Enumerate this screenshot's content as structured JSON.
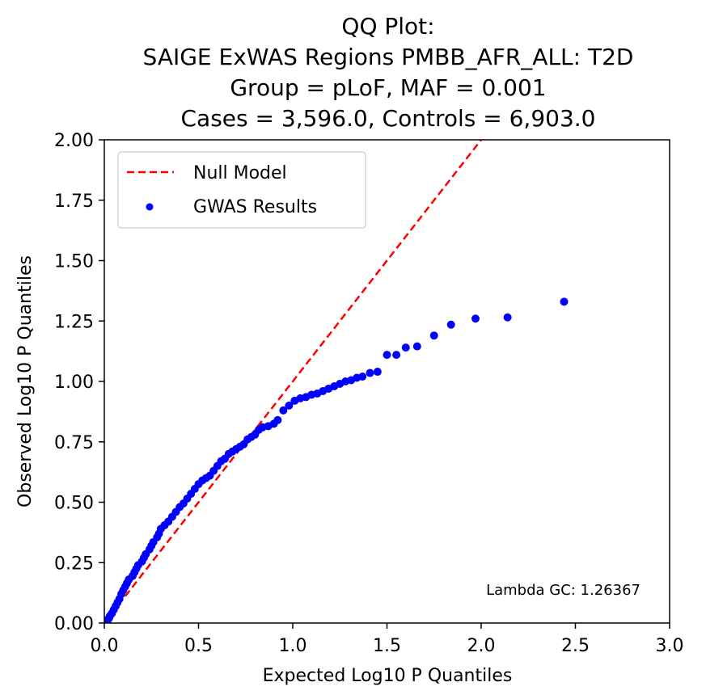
{
  "chart_data": {
    "type": "scatter",
    "title_lines": [
      "QQ Plot:",
      "SAIGE ExWAS Regions PMBB_AFR_ALL: T2D",
      "Group = pLoF, MAF = 0.001",
      "Cases = 3,596.0, Controls = 6,903.0"
    ],
    "xlabel": "Expected Log10 P Quantiles",
    "ylabel": "Observed Log10 P Quantiles",
    "xlim": [
      0,
      3
    ],
    "ylim": [
      0,
      2
    ],
    "xticks": [
      "0.0",
      "0.5",
      "1.0",
      "1.5",
      "2.0",
      "2.5",
      "3.0"
    ],
    "yticks": [
      "0.00",
      "0.25",
      "0.50",
      "0.75",
      "1.00",
      "1.25",
      "1.50",
      "1.75",
      "2.00"
    ],
    "legend_position": "top-left",
    "annotation": "Lambda GC: 1.26367",
    "grid": false,
    "series": [
      {
        "name": "Null Model",
        "kind": "line",
        "style": "dashed",
        "color": "#ff0000",
        "x": [
          0,
          3
        ],
        "y": [
          0,
          3
        ]
      },
      {
        "name": "GWAS Results",
        "kind": "scatter",
        "color": "#0000ff",
        "points": [
          [
            2.44,
            1.33
          ],
          [
            2.14,
            1.265
          ],
          [
            1.97,
            1.26
          ],
          [
            1.84,
            1.235
          ],
          [
            1.75,
            1.19
          ],
          [
            1.66,
            1.145
          ],
          [
            1.6,
            1.14
          ],
          [
            1.55,
            1.11
          ],
          [
            1.5,
            1.11
          ],
          [
            1.45,
            1.04
          ],
          [
            1.41,
            1.035
          ],
          [
            1.37,
            1.02
          ],
          [
            1.34,
            1.015
          ],
          [
            1.31,
            1.005
          ],
          [
            1.28,
            1.0
          ],
          [
            1.25,
            0.99
          ],
          [
            1.22,
            0.98
          ],
          [
            1.19,
            0.97
          ],
          [
            1.16,
            0.96
          ],
          [
            1.13,
            0.95
          ],
          [
            1.1,
            0.945
          ],
          [
            1.07,
            0.935
          ],
          [
            1.04,
            0.93
          ],
          [
            1.01,
            0.92
          ],
          [
            0.98,
            0.9
          ],
          [
            0.95,
            0.88
          ],
          [
            0.92,
            0.84
          ],
          [
            0.9,
            0.825
          ],
          [
            0.87,
            0.815
          ],
          [
            0.84,
            0.81
          ],
          [
            0.82,
            0.8
          ],
          [
            0.8,
            0.78
          ],
          [
            0.78,
            0.77
          ],
          [
            0.76,
            0.76
          ],
          [
            0.74,
            0.74
          ],
          [
            0.72,
            0.73
          ],
          [
            0.7,
            0.72
          ],
          [
            0.68,
            0.71
          ],
          [
            0.66,
            0.7
          ],
          [
            0.64,
            0.68
          ],
          [
            0.62,
            0.67
          ],
          [
            0.6,
            0.65
          ],
          [
            0.58,
            0.63
          ],
          [
            0.56,
            0.61
          ],
          [
            0.54,
            0.6
          ],
          [
            0.52,
            0.59
          ],
          [
            0.5,
            0.575
          ],
          [
            0.48,
            0.555
          ],
          [
            0.46,
            0.535
          ],
          [
            0.44,
            0.515
          ],
          [
            0.42,
            0.495
          ],
          [
            0.4,
            0.48
          ],
          [
            0.38,
            0.46
          ],
          [
            0.36,
            0.44
          ],
          [
            0.34,
            0.42
          ],
          [
            0.32,
            0.405
          ],
          [
            0.3,
            0.39
          ],
          [
            0.29,
            0.37
          ],
          [
            0.28,
            0.355
          ],
          [
            0.26,
            0.335
          ],
          [
            0.25,
            0.32
          ],
          [
            0.24,
            0.305
          ],
          [
            0.22,
            0.285
          ],
          [
            0.21,
            0.27
          ],
          [
            0.2,
            0.255
          ],
          [
            0.18,
            0.24
          ],
          [
            0.17,
            0.225
          ],
          [
            0.16,
            0.21
          ],
          [
            0.15,
            0.195
          ],
          [
            0.13,
            0.18
          ],
          [
            0.12,
            0.165
          ],
          [
            0.11,
            0.15
          ],
          [
            0.1,
            0.135
          ],
          [
            0.09,
            0.12
          ],
          [
            0.08,
            0.1
          ],
          [
            0.07,
            0.085
          ],
          [
            0.06,
            0.07
          ],
          [
            0.05,
            0.055
          ],
          [
            0.04,
            0.04
          ],
          [
            0.03,
            0.03
          ],
          [
            0.025,
            0.02
          ],
          [
            0.02,
            0.015
          ],
          [
            0.015,
            0.01
          ],
          [
            0.01,
            0.005
          ],
          [
            0.005,
            0.003
          ]
        ]
      }
    ]
  }
}
